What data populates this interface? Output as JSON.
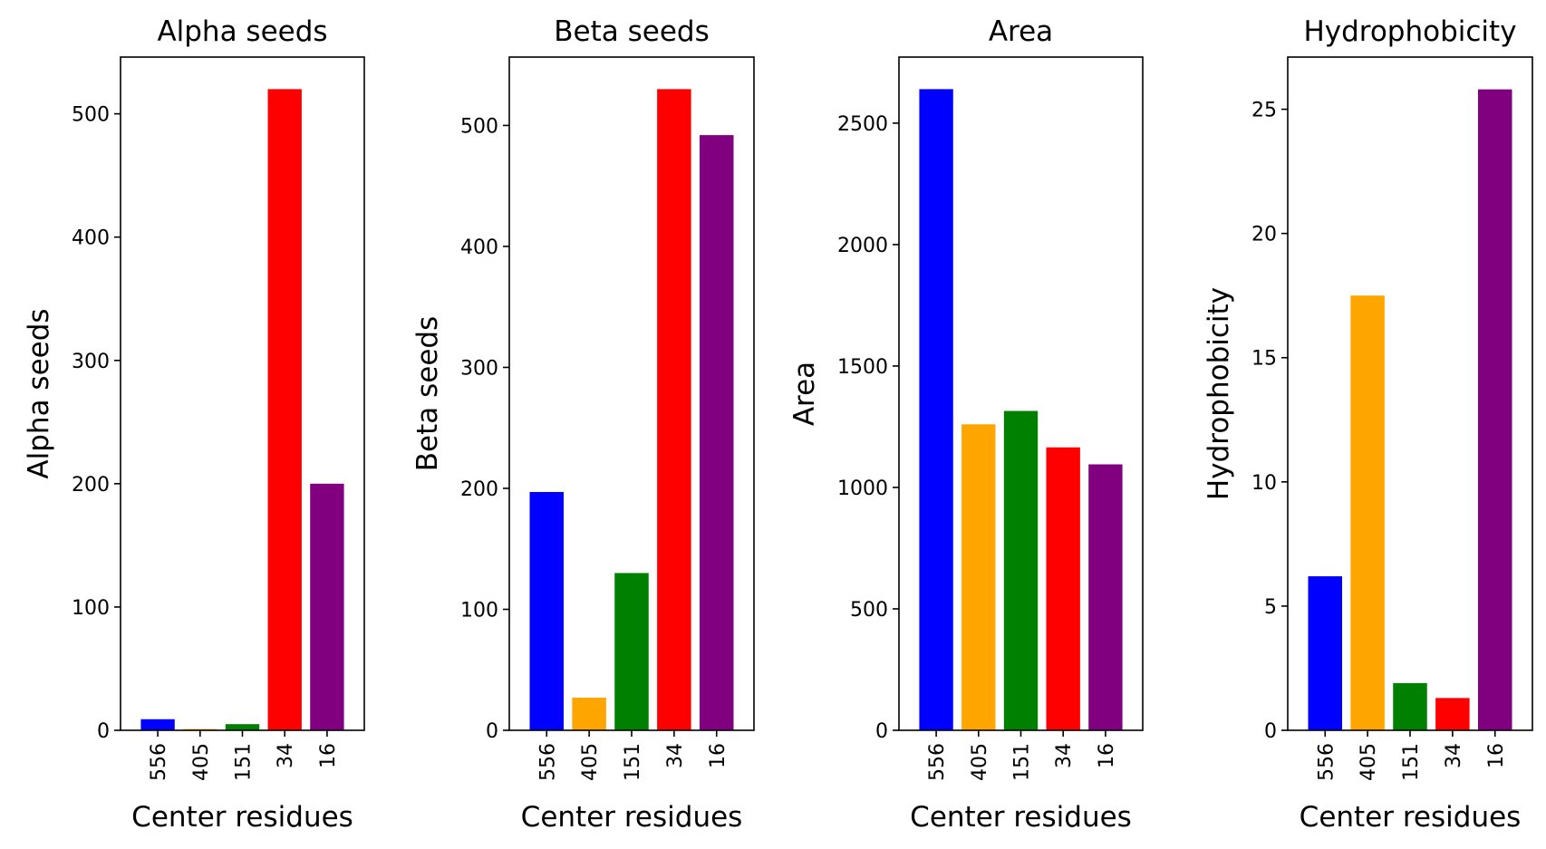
{
  "chart_data": [
    {
      "type": "bar",
      "title": "Alpha seeds",
      "xlabel": "Center residues",
      "ylabel": "Alpha seeds",
      "categories": [
        "556",
        "405",
        "151",
        "34",
        "16"
      ],
      "values": [
        9,
        1,
        5,
        520,
        200
      ],
      "ylim": [
        0,
        546
      ],
      "yticks": [
        0,
        100,
        200,
        300,
        400,
        500
      ],
      "colors": [
        "#0000ff",
        "#ffa500",
        "#008000",
        "#ff0000",
        "#800080"
      ]
    },
    {
      "type": "bar",
      "title": "Beta seeds",
      "xlabel": "Center residues",
      "ylabel": "Beta seeds",
      "categories": [
        "556",
        "405",
        "151",
        "34",
        "16"
      ],
      "values": [
        197,
        27,
        130,
        530,
        492
      ],
      "ylim": [
        0,
        556.5
      ],
      "yticks": [
        0,
        100,
        200,
        300,
        400,
        500
      ],
      "colors": [
        "#0000ff",
        "#ffa500",
        "#008000",
        "#ff0000",
        "#800080"
      ]
    },
    {
      "type": "bar",
      "title": "Area",
      "xlabel": "Center residues",
      "ylabel": "Area",
      "categories": [
        "556",
        "405",
        "151",
        "34",
        "16"
      ],
      "values": [
        2640,
        1260,
        1315,
        1165,
        1095
      ],
      "ylim": [
        0,
        2772
      ],
      "yticks": [
        0,
        500,
        1000,
        1500,
        2000,
        2500
      ],
      "colors": [
        "#0000ff",
        "#ffa500",
        "#008000",
        "#ff0000",
        "#800080"
      ]
    },
    {
      "type": "bar",
      "title": "Hydrophobicity",
      "xlabel": "Center residues",
      "ylabel": "Hydrophobicity",
      "categories": [
        "556",
        "405",
        "151",
        "34",
        "16"
      ],
      "values": [
        6.2,
        17.5,
        1.9,
        1.3,
        25.8
      ],
      "ylim": [
        0,
        27.1
      ],
      "yticks": [
        0,
        5,
        10,
        15,
        20,
        25
      ],
      "colors": [
        "#0000ff",
        "#ffa500",
        "#008000",
        "#ff0000",
        "#800080"
      ]
    }
  ]
}
